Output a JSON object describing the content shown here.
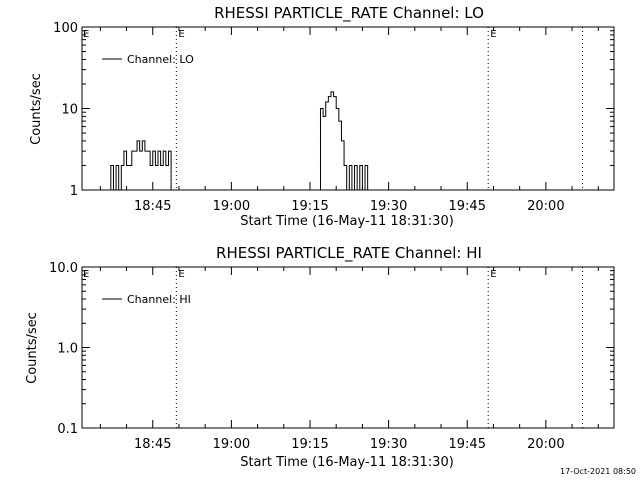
{
  "timestamp": "17-Oct-2021 08:50",
  "chart_data": [
    {
      "type": "line",
      "title": "RHESSI PARTICLE_RATE Channel: LO",
      "xlabel": "Start Time (16-May-11 18:31:30)",
      "ylabel": "Counts/sec",
      "yscale": "log",
      "ylim": [
        1,
        100
      ],
      "y_ticks": [
        {
          "label": "1",
          "value": 1
        },
        {
          "label": "10",
          "value": 10
        },
        {
          "label": "100",
          "value": 100
        }
      ],
      "x_ticks": [
        {
          "label": "18:45",
          "value": "18:45"
        },
        {
          "label": "19:00",
          "value": "19:00"
        },
        {
          "label": "19:15",
          "value": "19:15"
        },
        {
          "label": "19:30",
          "value": "19:30"
        },
        {
          "label": "19:45",
          "value": "19:45"
        },
        {
          "label": "20:00",
          "value": "20:00"
        }
      ],
      "xlim": [
        "18:31:30",
        "20:13:00"
      ],
      "legend": {
        "label": "Channel: LO",
        "position": "top-left"
      },
      "event_lines": [
        {
          "time": "18:49:30",
          "label": "E"
        },
        {
          "time": "19:49:00",
          "label": "E"
        },
        {
          "time": "20:07:00",
          "label": ""
        }
      ],
      "grid": false,
      "series": [
        {
          "name": "Channel: LO",
          "segments": [
            {
              "x": [
                "18:36:30",
                "18:37:00",
                "18:37:30",
                "18:38:00",
                "18:38:30",
                "18:39:00",
                "18:39:30",
                "18:40:00",
                "18:40:30",
                "18:41:00",
                "18:41:30",
                "18:42:00",
                "18:42:30",
                "18:43:00",
                "18:43:30",
                "18:44:00",
                "18:44:30",
                "18:45:00",
                "18:45:30",
                "18:46:00",
                "18:46:30",
                "18:47:00",
                "18:47:30",
                "18:48:00",
                "18:48:30"
              ],
              "y": [
                1,
                2,
                1,
                2,
                1,
                2,
                3,
                2,
                2,
                3,
                3,
                4,
                3,
                4,
                3,
                3,
                2,
                3,
                2,
                3,
                2,
                3,
                2,
                3,
                1
              ]
            },
            {
              "x": [
                "19:16:30",
                "19:17:00",
                "19:17:30",
                "19:18:00",
                "19:18:30",
                "19:19:00",
                "19:19:30",
                "19:20:00",
                "19:20:30",
                "19:21:00",
                "19:21:30",
                "19:22:00",
                "19:22:30",
                "19:23:00",
                "19:23:30",
                "19:24:00",
                "19:24:30",
                "19:25:00",
                "19:25:30",
                "19:26:00"
              ],
              "y": [
                1,
                10,
                8,
                12,
                14,
                16,
                14,
                10,
                7,
                4,
                2,
                1,
                2,
                1,
                2,
                1,
                2,
                1,
                2,
                1
              ]
            }
          ]
        }
      ]
    },
    {
      "type": "line",
      "title": "RHESSI PARTICLE_RATE Channel: HI",
      "xlabel": "Start Time (16-May-11 18:31:30)",
      "ylabel": "Counts/sec",
      "yscale": "log",
      "ylim": [
        0.1,
        10
      ],
      "y_ticks": [
        {
          "label": "0.1",
          "value": 0.1
        },
        {
          "label": "1.0",
          "value": 1
        },
        {
          "label": "10.0",
          "value": 10
        }
      ],
      "x_ticks": [
        {
          "label": "18:45",
          "value": "18:45"
        },
        {
          "label": "19:00",
          "value": "19:00"
        },
        {
          "label": "19:15",
          "value": "19:15"
        },
        {
          "label": "19:30",
          "value": "19:30"
        },
        {
          "label": "19:45",
          "value": "19:45"
        },
        {
          "label": "20:00",
          "value": "20:00"
        }
      ],
      "xlim": [
        "18:31:30",
        "20:13:00"
      ],
      "legend": {
        "label": "Channel: HI",
        "position": "top-left"
      },
      "event_lines": [
        {
          "time": "18:49:30",
          "label": "E"
        },
        {
          "time": "19:49:00",
          "label": "E"
        },
        {
          "time": "20:07:00",
          "label": ""
        }
      ],
      "grid": false,
      "series": [
        {
          "name": "Channel: HI",
          "segments": []
        }
      ]
    }
  ]
}
